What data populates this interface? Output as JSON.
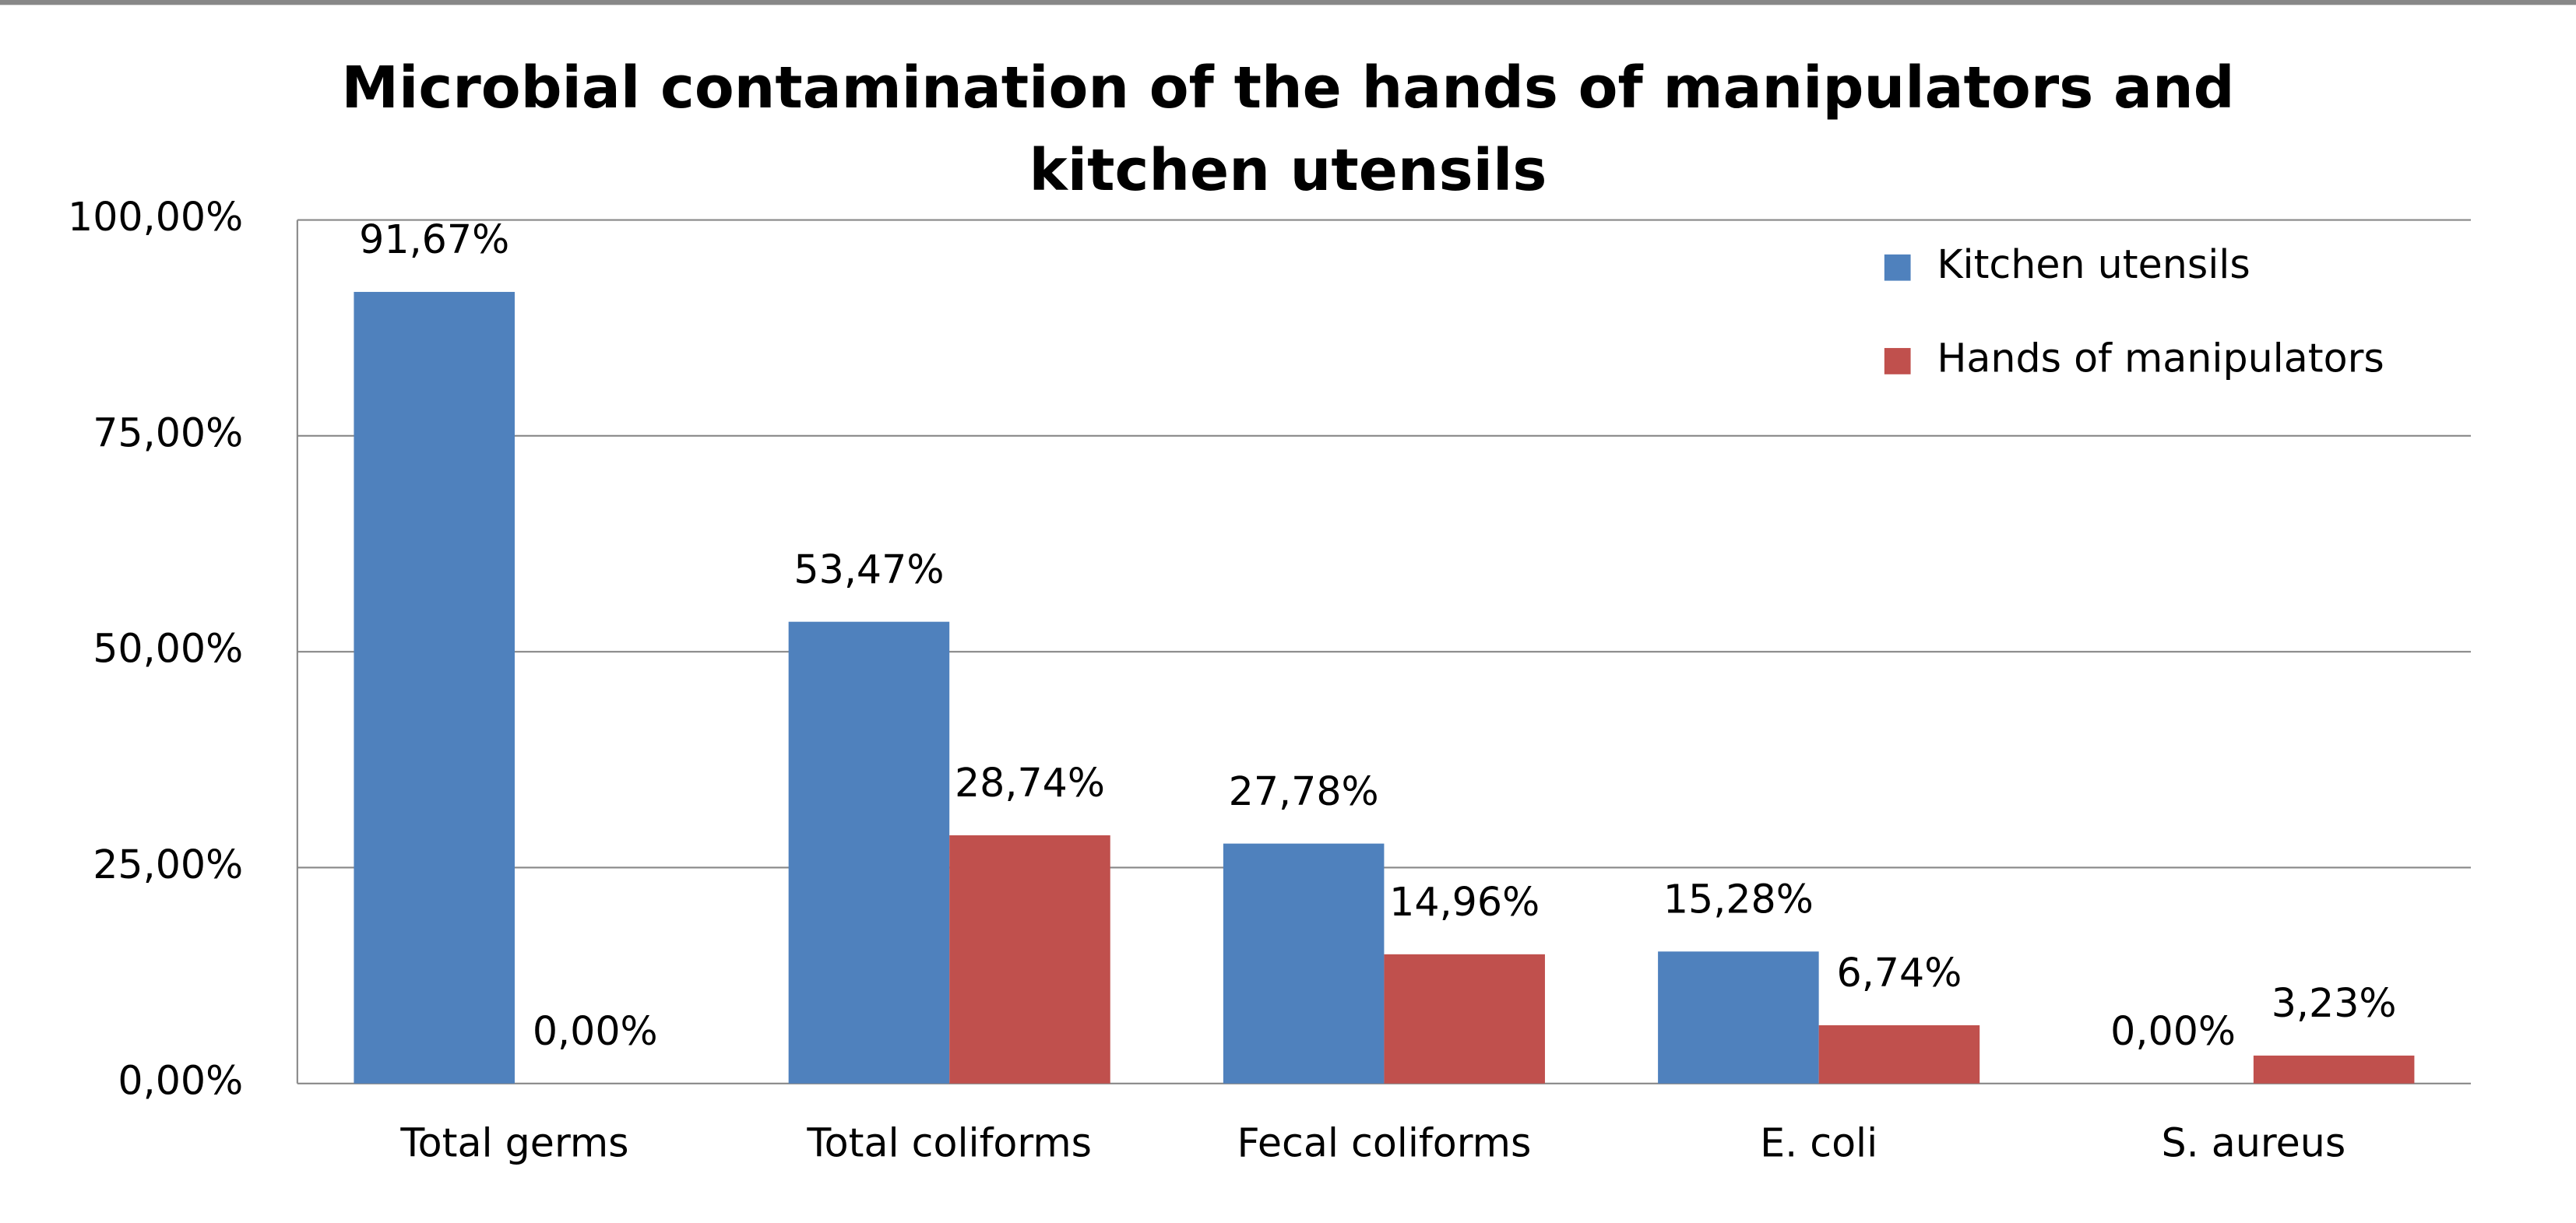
{
  "chart_data": {
    "type": "bar",
    "title": "Microbial contamination of the hands of manipulators and kitchen utensils",
    "categories": [
      "Total germs",
      "Total coliforms",
      "Fecal coliforms",
      "E. coli",
      "S. aureus"
    ],
    "series": [
      {
        "name": "Kitchen utensils",
        "color": "#4f81bd",
        "values": [
          91.67,
          53.47,
          27.78,
          15.28,
          0
        ],
        "value_labels": [
          "91,67%",
          "53,47%",
          "27,78%",
          "15,28%",
          "0,00%"
        ]
      },
      {
        "name": "Hands of manipulators",
        "color": "#c0504d",
        "values": [
          0,
          28.74,
          14.96,
          6.74,
          3.23
        ],
        "value_labels": [
          "0,00%",
          "28,74%",
          "14,96%",
          "6,74%",
          "3,23%"
        ]
      }
    ],
    "ylim": [
      0,
      100
    ],
    "yticks": [
      {
        "value": 0,
        "label": "0,00%"
      },
      {
        "value": 25,
        "label": "25,00%"
      },
      {
        "value": 50,
        "label": "50,00%"
      },
      {
        "value": 75,
        "label": "75,00%"
      },
      {
        "value": 100,
        "label": "100,00%"
      }
    ],
    "grid": true,
    "legend": "top-right"
  }
}
